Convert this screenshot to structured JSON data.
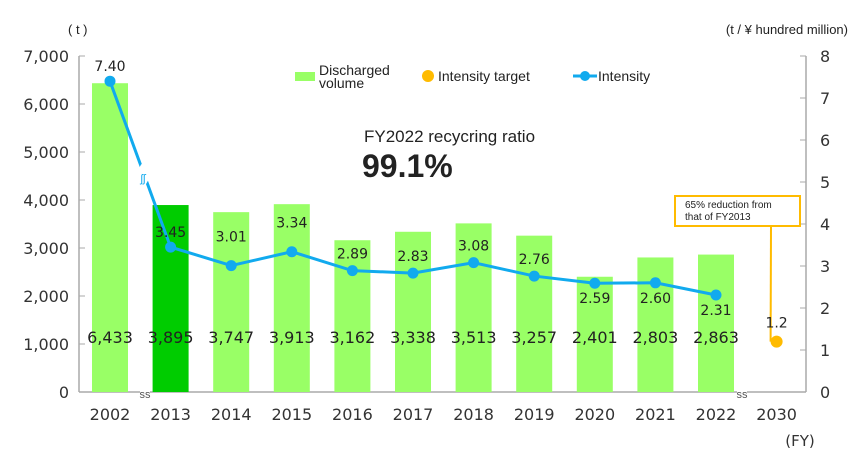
{
  "chart_data": {
    "type": "bar",
    "categories": [
      "2002",
      "2013",
      "2014",
      "2015",
      "2016",
      "2017",
      "2018",
      "2019",
      "2020",
      "2021",
      "2022",
      "2030"
    ],
    "left_axis_label": "( t )",
    "right_axis_label": "(t / ¥  hundred million)",
    "x_axis_unit": "(FY)",
    "left_ylim": [
      0,
      7000
    ],
    "left_ticks": [
      "0",
      "1,000",
      "2,000",
      "3,000",
      "4,000",
      "5,000",
      "6,000",
      "7,000"
    ],
    "right_ylim": [
      0,
      8
    ],
    "right_ticks": [
      "0",
      "1",
      "2",
      "3",
      "4",
      "5",
      "6",
      "7",
      "8"
    ],
    "series": [
      {
        "name": "Discharged volume",
        "type": "bar",
        "color": "#99ff66",
        "highlight_color": "#00cc00",
        "highlight_category": "2013",
        "values": [
          6433,
          3895,
          3747,
          3913,
          3162,
          3338,
          3513,
          3257,
          2401,
          2803,
          2863,
          null
        ],
        "labels": [
          "6,433",
          "3,895",
          "3,747",
          "3,913",
          "3,162",
          "3,338",
          "3,513",
          "3,257",
          "2,401",
          "2,803",
          "2,863",
          ""
        ]
      },
      {
        "name": "Intensity",
        "type": "line",
        "color": "#11aaee",
        "values": [
          7.4,
          3.45,
          3.01,
          3.34,
          2.89,
          2.83,
          3.08,
          2.76,
          2.59,
          2.6,
          2.31,
          null
        ],
        "labels": [
          "7.40",
          "3.45",
          "3.01",
          "3.34",
          "2.89",
          "2.83",
          "3.08",
          "2.76",
          "2.59",
          "2.60",
          "2.31",
          ""
        ]
      },
      {
        "name": "Intensity target",
        "type": "point",
        "color": "#ffbb00",
        "values": [
          null,
          null,
          null,
          null,
          null,
          null,
          null,
          null,
          null,
          null,
          null,
          1.2
        ],
        "labels": [
          "",
          "",
          "",
          "",
          "",
          "",
          "",
          "",
          "",
          "",
          "",
          "1.2"
        ]
      }
    ],
    "annotation": "65% reduction from that of FY2013",
    "legend_placement": "top-center",
    "grid": false
  },
  "headline": {
    "label": "FY2022 recycring ratio",
    "value": "99.1%"
  },
  "annotation_lines": [
    "65% reduction from",
    "that of FY2013"
  ]
}
